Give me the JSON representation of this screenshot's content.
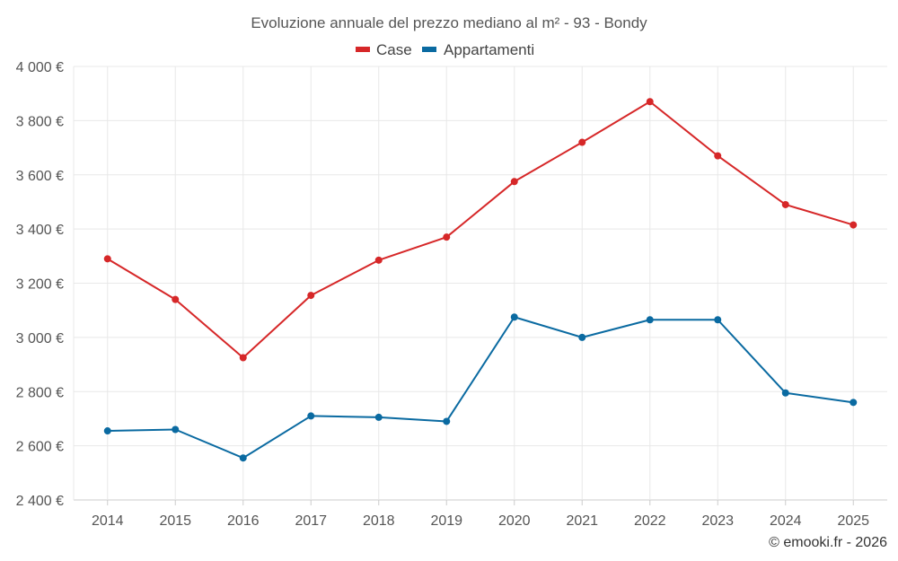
{
  "chart_data": {
    "type": "line",
    "title": "Evoluzione annuale del prezzo mediano al m² - 93 - Bondy",
    "x": [
      "2014",
      "2015",
      "2016",
      "2017",
      "2018",
      "2019",
      "2020",
      "2021",
      "2022",
      "2023",
      "2024",
      "2025"
    ],
    "series": [
      {
        "name": "Case",
        "color": "#d62728",
        "values": [
          3290,
          3140,
          2925,
          3155,
          3285,
          3370,
          3575,
          3720,
          3870,
          3670,
          3490,
          3415
        ]
      },
      {
        "name": "Appartamenti",
        "color": "#0a6aa1",
        "values": [
          2655,
          2660,
          2555,
          2710,
          2705,
          2690,
          3075,
          3000,
          3065,
          3065,
          2795,
          2760
        ]
      }
    ],
    "ylim": [
      2400,
      4000
    ],
    "yticks": [
      2400,
      2600,
      2800,
      3000,
      3200,
      3400,
      3600,
      3800,
      4000
    ],
    "ytick_labels": [
      "2 400 €",
      "2 600 €",
      "2 800 €",
      "3 000 €",
      "3 200 €",
      "3 400 €",
      "3 600 €",
      "3 800 €",
      "4 000 €"
    ],
    "xlabel": "",
    "ylabel": "",
    "grid": true,
    "legend": "top-center"
  },
  "credit": "© emooki.fr - 2026"
}
